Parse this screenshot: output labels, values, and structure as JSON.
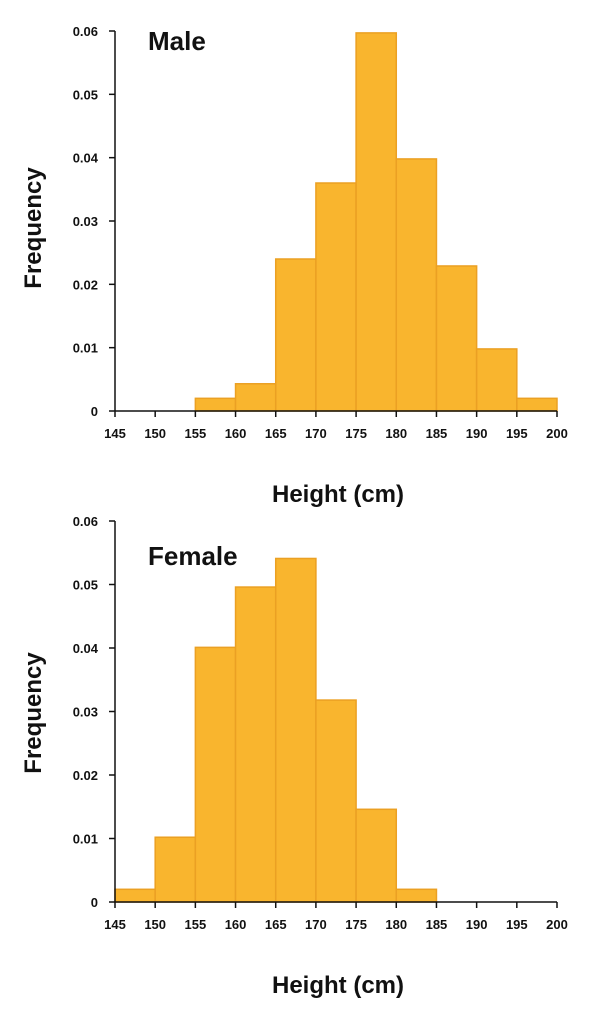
{
  "chart_data": [
    {
      "type": "bar",
      "title": "Male",
      "xlabel": "Height (cm)",
      "ylabel": "Frequency",
      "xlim": [
        145,
        200
      ],
      "ylim": [
        0,
        0.06
      ],
      "xticks": [
        "145",
        "150",
        "155",
        "160",
        "165",
        "170",
        "175",
        "180",
        "185",
        "190",
        "195",
        "200"
      ],
      "yticks": [
        "0",
        "0.01",
        "0.02",
        "0.03",
        "0.04",
        "0.05",
        "0.06"
      ],
      "bins": [
        {
          "start": 155,
          "end": 160,
          "value": 0.002
        },
        {
          "start": 160,
          "end": 165,
          "value": 0.0043
        },
        {
          "start": 165,
          "end": 170,
          "value": 0.024
        },
        {
          "start": 170,
          "end": 175,
          "value": 0.036
        },
        {
          "start": 175,
          "end": 180,
          "value": 0.0597
        },
        {
          "start": 180,
          "end": 185,
          "value": 0.0398
        },
        {
          "start": 185,
          "end": 190,
          "value": 0.0229
        },
        {
          "start": 190,
          "end": 195,
          "value": 0.0098
        },
        {
          "start": 195,
          "end": 200,
          "value": 0.002
        }
      ],
      "bar_color": "#F9B52E",
      "bar_edge_color": "#EBA023"
    },
    {
      "type": "bar",
      "title": "Female",
      "xlabel": "Height (cm)",
      "ylabel": "Frequency",
      "xlim": [
        145,
        200
      ],
      "ylim": [
        0,
        0.06
      ],
      "xticks": [
        "145",
        "150",
        "155",
        "160",
        "165",
        "170",
        "175",
        "180",
        "185",
        "190",
        "195",
        "200"
      ],
      "yticks": [
        "0",
        "0.01",
        "0.02",
        "0.03",
        "0.04",
        "0.05",
        "0.06"
      ],
      "bins": [
        {
          "start": 145,
          "end": 150,
          "value": 0.002
        },
        {
          "start": 150,
          "end": 155,
          "value": 0.0102
        },
        {
          "start": 155,
          "end": 160,
          "value": 0.0401
        },
        {
          "start": 160,
          "end": 165,
          "value": 0.0496
        },
        {
          "start": 165,
          "end": 170,
          "value": 0.0541
        },
        {
          "start": 170,
          "end": 175,
          "value": 0.0318
        },
        {
          "start": 175,
          "end": 180,
          "value": 0.0146
        },
        {
          "start": 180,
          "end": 185,
          "value": 0.002
        }
      ],
      "bar_color": "#F9B52E",
      "bar_edge_color": "#EBA023"
    }
  ]
}
